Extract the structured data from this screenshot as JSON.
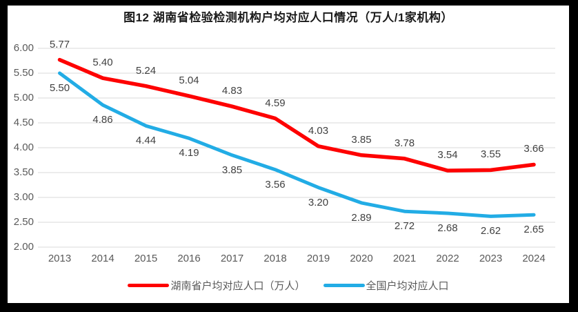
{
  "chart_data": {
    "type": "line",
    "title": "图12 湖南省检验检测机构户均对应人口情况（万人/1家机构）",
    "x": [
      "2013",
      "2014",
      "2015",
      "2016",
      "2017",
      "2018",
      "2019",
      "2020",
      "2021",
      "2022",
      "2023",
      "2024"
    ],
    "series": [
      {
        "name": "湖南省户均对应人口（万人）",
        "color": "#fe0000",
        "values": [
          5.77,
          5.4,
          5.24,
          5.04,
          4.83,
          4.59,
          4.03,
          3.85,
          3.78,
          3.54,
          3.55,
          3.66
        ],
        "label_position": "above"
      },
      {
        "name": "全国户均对应人口",
        "color": "#22ace5",
        "values": [
          5.5,
          4.86,
          4.44,
          4.19,
          3.85,
          3.56,
          3.2,
          2.89,
          2.72,
          2.68,
          2.62,
          2.65
        ],
        "label_position": "below"
      }
    ],
    "ylim": [
      2.0,
      6.0
    ],
    "yticks": [
      6.0,
      5.5,
      5.0,
      4.5,
      4.0,
      3.5,
      3.0,
      2.5,
      2.0
    ],
    "ytick_labels": [
      "6.00",
      "5.50",
      "5.00",
      "4.50",
      "4.00",
      "3.50",
      "3.00",
      "2.50",
      "2.00"
    ],
    "grid": true,
    "gridline_color": "#d9d9d9",
    "legend_position": "bottom",
    "frame_color": "#000000",
    "background_color": "#ffffff"
  }
}
